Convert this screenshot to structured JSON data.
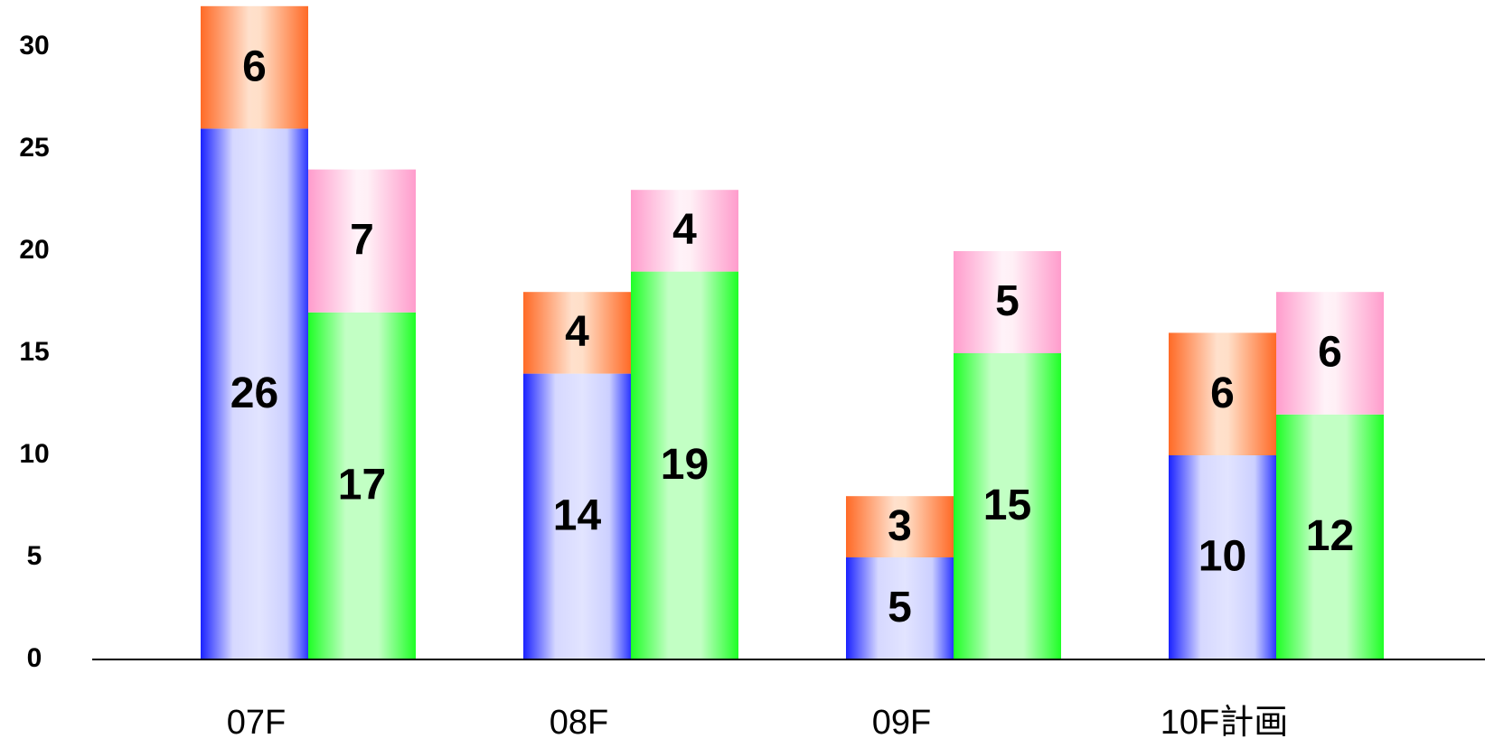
{
  "chart_data": {
    "type": "bar",
    "stacked": true,
    "grouped": true,
    "title": "",
    "xlabel": "",
    "ylabel": "",
    "categories": [
      "07F",
      "08F",
      "09F",
      "10F計画"
    ],
    "ylim": [
      0,
      32
    ],
    "yticks": [
      0,
      5,
      10,
      15,
      20,
      25,
      30
    ],
    "grid": false,
    "legend": "none",
    "groups": [
      {
        "stack": [
          {
            "values": [
              26,
              14,
              5,
              10
            ],
            "color": "#1a2bff"
          },
          {
            "values": [
              6,
              4,
              3,
              6
            ],
            "color": "#ff6a2b"
          }
        ]
      },
      {
        "stack": [
          {
            "values": [
              17,
              19,
              15,
              12
            ],
            "color": "#22ff2a"
          },
          {
            "values": [
              7,
              4,
              5,
              6
            ],
            "color": "#ff9ccc"
          }
        ]
      }
    ]
  }
}
